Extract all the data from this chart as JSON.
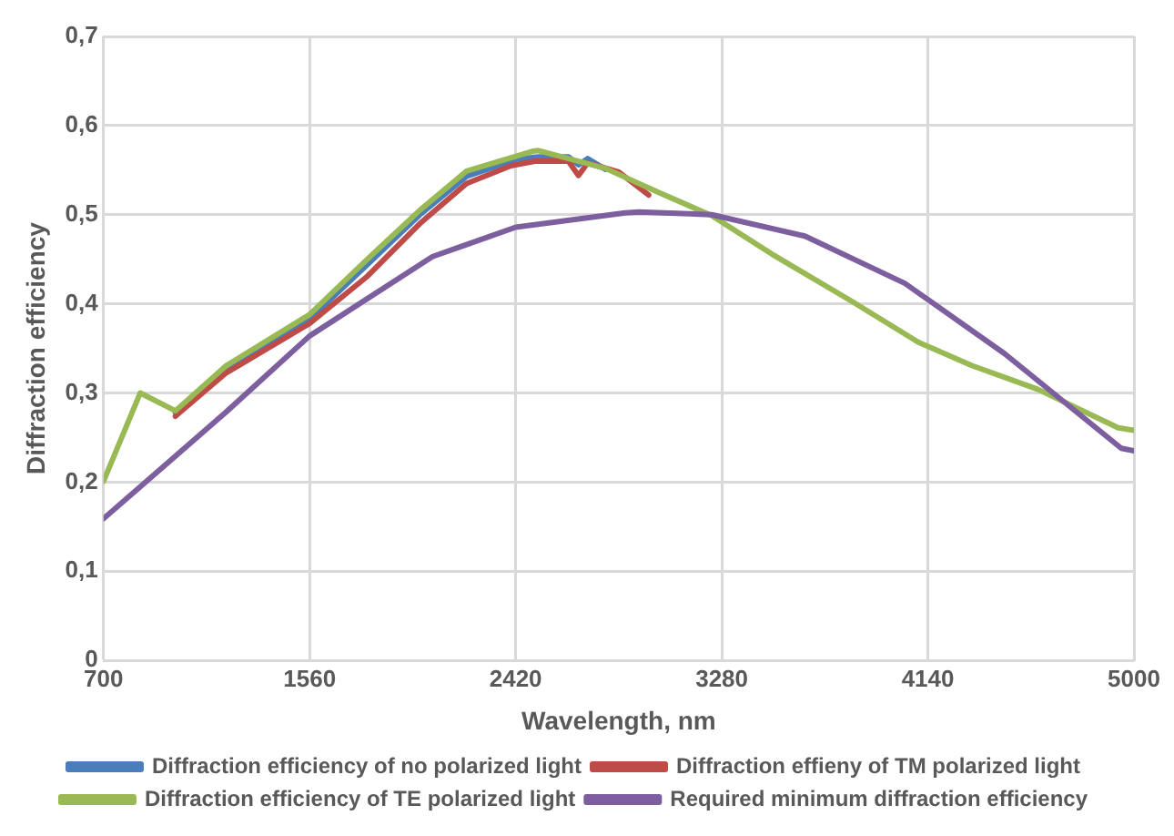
{
  "chart_data": {
    "type": "line",
    "xlabel": "Wavelength, nm",
    "ylabel": "Diffraction efficiency",
    "xlim": [
      700,
      5000
    ],
    "xticks": [
      700,
      1560,
      2420,
      3280,
      4140,
      5000
    ],
    "ylim": [
      0,
      0.7
    ],
    "yticks": [
      0,
      {
        "value": 0.1,
        "label": "0,1"
      },
      {
        "value": 0.2,
        "label": "0,2"
      },
      {
        "value": 0.3,
        "label": "0,3"
      },
      {
        "value": 0.4,
        "label": "0,4"
      },
      {
        "value": 0.5,
        "label": "0,5"
      },
      {
        "value": 0.6,
        "label": "0,6"
      },
      {
        "value": 0.7,
        "label": "0,7"
      }
    ],
    "grid": true,
    "legend": "bottom",
    "marker": "none",
    "line_style": "solid",
    "series": [
      {
        "name": "Diffraction efficiency of no polarized light",
        "color": "#4a7ebb",
        "x": [
          1000,
          1209,
          1560,
          1797,
          2020,
          2215,
          2420,
          2515,
          2640,
          2682,
          2720,
          2794
        ],
        "values": [
          0.278,
          0.327,
          0.383,
          0.443,
          0.5,
          0.543,
          0.562,
          0.565,
          0.565,
          0.556,
          0.563,
          0.551
        ]
      },
      {
        "name": "Diffraction effieny of TM polarized light",
        "color": "#be4b48",
        "x": [
          1000,
          1209,
          1560,
          1797,
          2020,
          2215,
          2400,
          2500,
          2640,
          2682,
          2720,
          2850,
          2975
        ],
        "values": [
          0.274,
          0.322,
          0.378,
          0.43,
          0.49,
          0.535,
          0.555,
          0.56,
          0.56,
          0.544,
          0.558,
          0.548,
          0.522
        ]
      },
      {
        "name": "Diffraction efficiency of TE polarized light",
        "color": "#98b954",
        "x": [
          700,
          853,
          1000,
          1209,
          1560,
          1797,
          2020,
          2215,
          2487,
          2515,
          2794,
          3016,
          3238,
          3488,
          3822,
          4100,
          4322,
          4600,
          4934,
          5000
        ],
        "values": [
          0.201,
          0.3,
          0.28,
          0.33,
          0.388,
          0.449,
          0.505,
          0.549,
          0.571,
          0.572,
          0.552,
          0.525,
          0.499,
          0.456,
          0.403,
          0.357,
          0.331,
          0.304,
          0.261,
          0.258
        ]
      },
      {
        "name": "Required minimum diffraction efficiency",
        "color": "#7d5fa0",
        "x": [
          700,
          1209,
          1560,
          2073,
          2420,
          2877,
          2935,
          3238,
          3627,
          4044,
          4461,
          4947,
          5000
        ],
        "values": [
          0.159,
          0.278,
          0.364,
          0.453,
          0.486,
          0.502,
          0.503,
          0.5,
          0.476,
          0.423,
          0.344,
          0.238,
          0.235
        ]
      }
    ]
  }
}
